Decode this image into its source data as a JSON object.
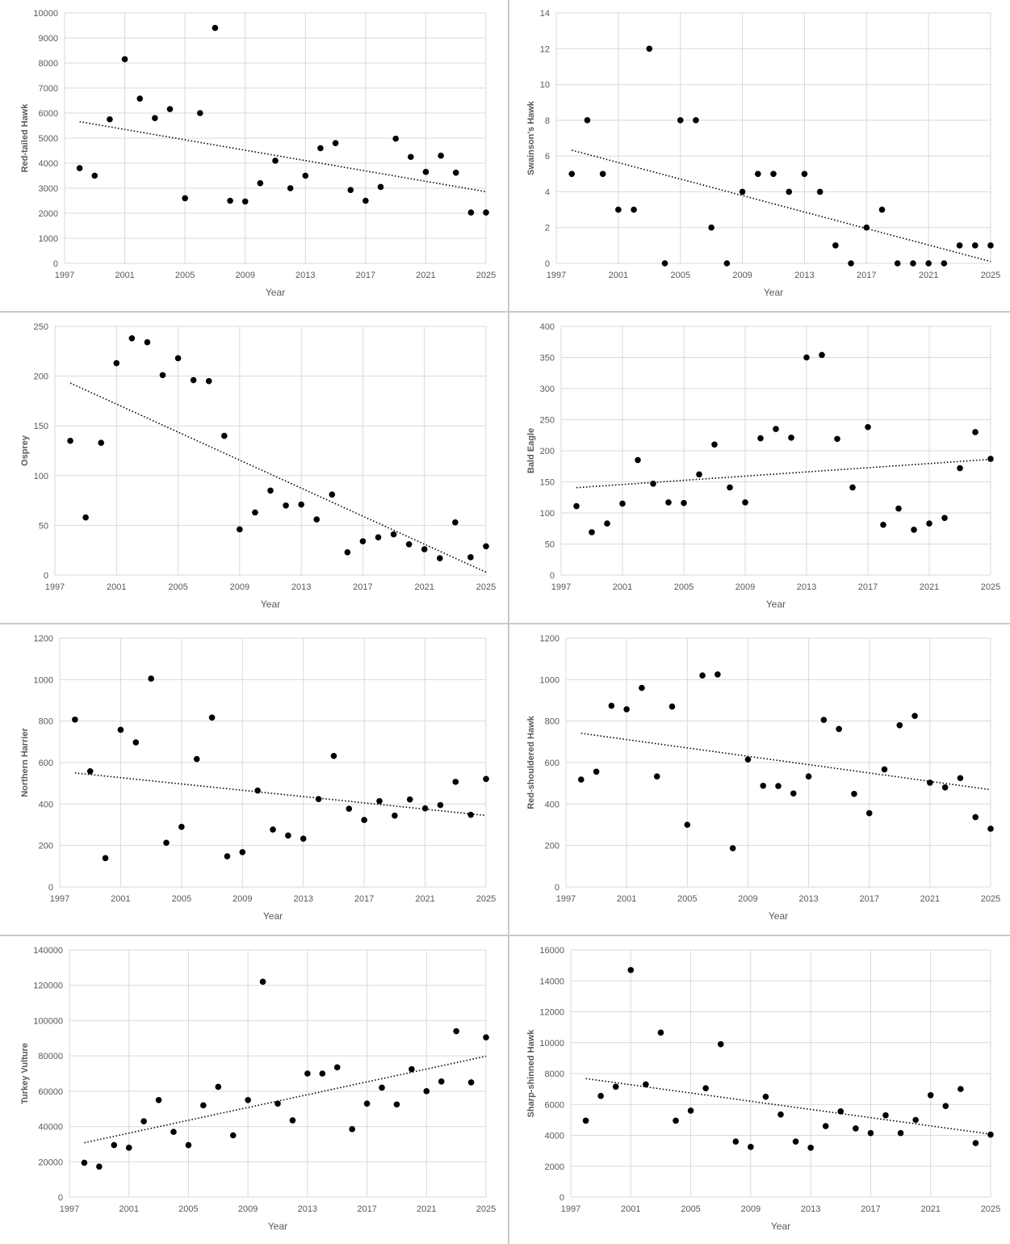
{
  "chart_data": [
    {
      "type": "scatter",
      "xlabel": "Year",
      "ylabel": "Red-tailed Hawk",
      "xlim": [
        1997,
        2025
      ],
      "ylim": [
        0,
        10000
      ],
      "x_ticks": [
        "1997",
        "2001",
        "2005",
        "2009",
        "2013",
        "2017",
        "2021",
        "2025"
      ],
      "y_ticks": [
        "0",
        "1000",
        "2000",
        "3000",
        "4000",
        "5000",
        "6000",
        "7000",
        "8000",
        "9000",
        "10000"
      ],
      "grid": true,
      "trendline": "linear",
      "x": [
        1998,
        1999,
        2000,
        2001,
        2002,
        2003,
        2004,
        2005,
        2006,
        2007,
        2008,
        2009,
        2010,
        2011,
        2012,
        2013,
        2014,
        2015,
        2016,
        2017,
        2018,
        2019,
        2020,
        2021,
        2022,
        2023,
        2024,
        2025
      ],
      "y": [
        3800,
        3500,
        5750,
        8150,
        6580,
        5800,
        6160,
        2600,
        6000,
        9400,
        2500,
        2470,
        3200,
        4100,
        3000,
        3500,
        4600,
        4800,
        2930,
        2500,
        3050,
        4980,
        4250,
        3650,
        4300,
        3620,
        2030,
        2030
      ]
    },
    {
      "type": "scatter",
      "xlabel": "Year",
      "ylabel": "Swainson's Hawk",
      "xlim": [
        1997,
        2025
      ],
      "ylim": [
        0,
        14
      ],
      "x_ticks": [
        "1997",
        "2001",
        "2005",
        "2009",
        "2013",
        "2017",
        "2021",
        "2025"
      ],
      "y_ticks": [
        "0",
        "2",
        "4",
        "6",
        "8",
        "10",
        "12",
        "14"
      ],
      "grid": true,
      "trendline": "linear",
      "x": [
        1998,
        1999,
        2000,
        2001,
        2002,
        2003,
        2004,
        2005,
        2006,
        2007,
        2008,
        2009,
        2010,
        2011,
        2012,
        2013,
        2014,
        2015,
        2016,
        2017,
        2018,
        2019,
        2020,
        2021,
        2022,
        2023,
        2024,
        2025
      ],
      "y": [
        5,
        8,
        5,
        3,
        3,
        12,
        0,
        8,
        8,
        2,
        0,
        4,
        5,
        5,
        4,
        5,
        4,
        1,
        0,
        2,
        3,
        0,
        0,
        0,
        0,
        1,
        1,
        1
      ]
    },
    {
      "type": "scatter",
      "xlabel": "Year",
      "ylabel": "Osprey",
      "xlim": [
        1997,
        2025
      ],
      "ylim": [
        0,
        250
      ],
      "x_ticks": [
        "1997",
        "2001",
        "2005",
        "2009",
        "2013",
        "2017",
        "2021",
        "2025"
      ],
      "y_ticks": [
        "0",
        "50",
        "100",
        "150",
        "200",
        "250"
      ],
      "grid": true,
      "trendline": "linear",
      "x": [
        1998,
        1999,
        2000,
        2001,
        2002,
        2003,
        2004,
        2005,
        2006,
        2007,
        2008,
        2009,
        2010,
        2011,
        2012,
        2013,
        2014,
        2015,
        2016,
        2017,
        2018,
        2019,
        2020,
        2021,
        2022,
        2023,
        2024,
        2025
      ],
      "y": [
        135,
        58,
        133,
        213,
        238,
        234,
        201,
        218,
        196,
        195,
        140,
        46,
        63,
        85,
        70,
        71,
        56,
        81,
        23,
        34,
        38,
        41,
        31,
        26,
        17,
        53,
        18,
        29
      ]
    },
    {
      "type": "scatter",
      "xlabel": "Year",
      "ylabel": "Bald Eagle",
      "xlim": [
        1997,
        2025
      ],
      "ylim": [
        0,
        400
      ],
      "x_ticks": [
        "1997",
        "2001",
        "2005",
        "2009",
        "2013",
        "2017",
        "2021",
        "2025"
      ],
      "y_ticks": [
        "0",
        "50",
        "100",
        "150",
        "200",
        "250",
        "300",
        "350",
        "400"
      ],
      "grid": true,
      "trendline": "linear",
      "x": [
        1998,
        1999,
        2000,
        2001,
        2002,
        2003,
        2004,
        2005,
        2006,
        2007,
        2008,
        2009,
        2010,
        2011,
        2012,
        2013,
        2014,
        2015,
        2016,
        2017,
        2018,
        2019,
        2020,
        2021,
        2022,
        2023,
        2024,
        2025
      ],
      "y": [
        111,
        69,
        83,
        115,
        185,
        147,
        117,
        116,
        162,
        210,
        141,
        117,
        220,
        235,
        221,
        350,
        354,
        219,
        141,
        238,
        81,
        107,
        73,
        83,
        92,
        172,
        230,
        187
      ]
    },
    {
      "type": "scatter",
      "xlabel": "Year",
      "ylabel": "Northern Harrier",
      "xlim": [
        1997,
        2025
      ],
      "ylim": [
        0,
        1200
      ],
      "x_ticks": [
        "1997",
        "2001",
        "2005",
        "2009",
        "2013",
        "2017",
        "2021",
        "2025"
      ],
      "y_ticks": [
        "0",
        "200",
        "400",
        "600",
        "800",
        "1000",
        "1200"
      ],
      "grid": true,
      "trendline": "linear",
      "x": [
        1998,
        1999,
        2000,
        2001,
        2002,
        2003,
        2004,
        2005,
        2006,
        2007,
        2008,
        2009,
        2010,
        2011,
        2012,
        2013,
        2014,
        2015,
        2016,
        2017,
        2018,
        2019,
        2020,
        2021,
        2022,
        2023,
        2024,
        2025
      ],
      "y": [
        807,
        558,
        139,
        758,
        697,
        1005,
        213,
        290,
        617,
        817,
        148,
        168,
        465,
        277,
        248,
        233,
        424,
        632,
        377,
        323,
        414,
        344,
        422,
        379,
        395,
        507,
        348,
        521
      ]
    },
    {
      "type": "scatter",
      "xlabel": "Year",
      "ylabel": "Red-shouldered Hawk",
      "xlim": [
        1997,
        2025
      ],
      "ylim": [
        0,
        1200
      ],
      "x_ticks": [
        "1997",
        "2001",
        "2005",
        "2009",
        "2013",
        "2017",
        "2021",
        "2025"
      ],
      "y_ticks": [
        "0",
        "200",
        "400",
        "600",
        "800",
        "1000",
        "1200"
      ],
      "grid": true,
      "trendline": "linear",
      "x": [
        1998,
        1999,
        2000,
        2001,
        2002,
        2003,
        2004,
        2005,
        2006,
        2007,
        2008,
        2009,
        2010,
        2011,
        2012,
        2013,
        2014,
        2015,
        2016,
        2017,
        2018,
        2019,
        2020,
        2021,
        2022,
        2023,
        2024,
        2025
      ],
      "y": [
        518,
        556,
        874,
        857,
        960,
        533,
        870,
        300,
        1020,
        1025,
        187,
        615,
        488,
        487,
        451,
        533,
        806,
        762,
        449,
        356,
        567,
        780,
        825,
        503,
        480,
        525,
        337,
        281
      ]
    },
    {
      "type": "scatter",
      "xlabel": "Year",
      "ylabel": "Turkey Vulture",
      "xlim": [
        1997,
        2025
      ],
      "ylim": [
        0,
        140000
      ],
      "x_ticks": [
        "1997",
        "2001",
        "2005",
        "2009",
        "2013",
        "2017",
        "2021",
        "2025"
      ],
      "y_ticks": [
        "0",
        "20000",
        "40000",
        "60000",
        "80000",
        "100000",
        "120000",
        "140000"
      ],
      "grid": true,
      "trendline": "linear",
      "x": [
        1998,
        1999,
        2000,
        2001,
        2002,
        2003,
        2004,
        2005,
        2006,
        2007,
        2008,
        2009,
        2010,
        2011,
        2012,
        2013,
        2014,
        2015,
        2016,
        2017,
        2018,
        2019,
        2020,
        2021,
        2022,
        2023,
        2024,
        2025
      ],
      "y": [
        19500,
        17300,
        29500,
        28000,
        43000,
        55000,
        37000,
        29500,
        52000,
        62500,
        35000,
        55000,
        122000,
        53000,
        43500,
        70000,
        70000,
        73500,
        38500,
        53000,
        62000,
        52500,
        72500,
        60000,
        65500,
        94000,
        65000,
        90500
      ]
    },
    {
      "type": "scatter",
      "xlabel": "Year",
      "ylabel": "Sharp-shinned Hawk",
      "xlim": [
        1997,
        2025
      ],
      "ylim": [
        0,
        16000
      ],
      "x_ticks": [
        "1997",
        "2001",
        "2005",
        "2009",
        "2013",
        "2017",
        "2021",
        "2025"
      ],
      "y_ticks": [
        "0",
        "2000",
        "4000",
        "6000",
        "8000",
        "10000",
        "12000",
        "14000",
        "16000"
      ],
      "grid": true,
      "trendline": "linear",
      "x": [
        1998,
        1999,
        2000,
        2001,
        2002,
        2003,
        2004,
        2005,
        2006,
        2007,
        2008,
        2009,
        2010,
        2011,
        2012,
        2013,
        2014,
        2015,
        2016,
        2017,
        2018,
        2019,
        2020,
        2021,
        2022,
        2023,
        2024,
        2025
      ],
      "y": [
        4950,
        6550,
        7150,
        14700,
        7300,
        10650,
        4950,
        5600,
        7050,
        9900,
        3600,
        3250,
        6500,
        5350,
        3600,
        3200,
        4600,
        5550,
        4450,
        4150,
        5300,
        4150,
        5000,
        6600,
        5900,
        7000,
        3500,
        4050
      ]
    }
  ]
}
